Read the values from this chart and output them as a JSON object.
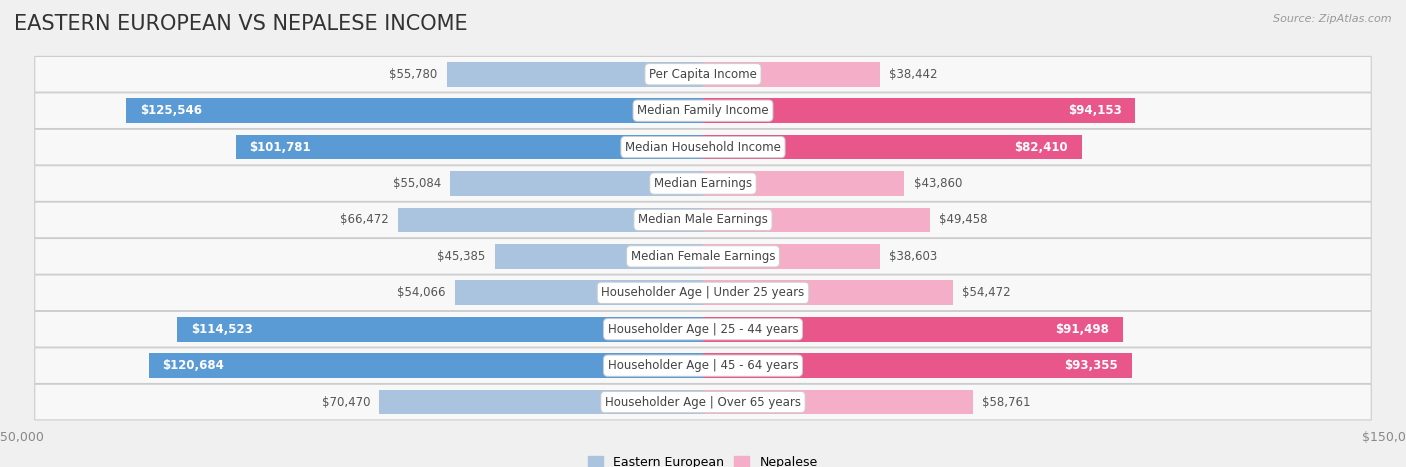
{
  "title": "EASTERN EUROPEAN VS NEPALESE INCOME",
  "source": "Source: ZipAtlas.com",
  "categories": [
    "Per Capita Income",
    "Median Family Income",
    "Median Household Income",
    "Median Earnings",
    "Median Male Earnings",
    "Median Female Earnings",
    "Householder Age | Under 25 years",
    "Householder Age | 25 - 44 years",
    "Householder Age | 45 - 64 years",
    "Householder Age | Over 65 years"
  ],
  "eastern_european": [
    55780,
    125546,
    101781,
    55084,
    66472,
    45385,
    54066,
    114523,
    120684,
    70470
  ],
  "nepalese": [
    38442,
    94153,
    82410,
    43860,
    49458,
    38603,
    54472,
    91498,
    93355,
    58761
  ],
  "max_val": 150000,
  "blue_light": "#aac4e0",
  "blue_dark": "#5b9bd5",
  "pink_light": "#f4aec8",
  "pink_dark": "#e8568a",
  "bg_color": "#f0f0f0",
  "row_bg_light": "#f8f8f8",
  "row_bg_white": "#ffffff",
  "row_border": "#cccccc",
  "inside_threshold_ee": 80000,
  "inside_threshold_np": 70000,
  "title_fontsize": 15,
  "label_fontsize": 8.5,
  "value_fontsize": 8.5,
  "axis_fontsize": 9,
  "legend_fontsize": 9
}
